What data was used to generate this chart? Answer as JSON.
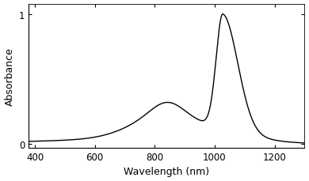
{
  "title": "",
  "xlabel": "Wavelength (nm)",
  "ylabel": "Absorbance",
  "xlim": [
    380,
    1300
  ],
  "ylim": [
    -0.03,
    1.08
  ],
  "xticks": [
    400,
    600,
    800,
    1000,
    1200
  ],
  "yticks": [
    0,
    1
  ],
  "line_color": "#000000",
  "background_color": "#ffffff",
  "peak_wavelength": 1027,
  "figsize": [
    3.9,
    2.3
  ],
  "dpi": 100
}
